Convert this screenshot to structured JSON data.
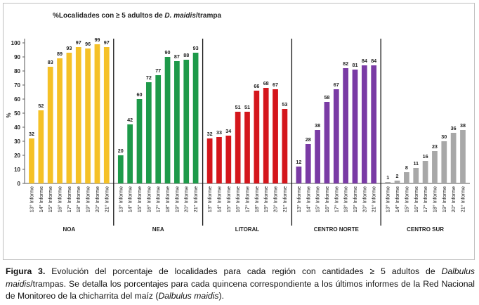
{
  "chart_data": {
    "type": "bar",
    "title_prefix": "%Localidades con ≥ 5 adultos de ",
    "title_species": "D. maidis",
    "title_suffix": "/trampa",
    "ylabel": "%",
    "ylim": [
      0,
      100
    ],
    "yticks": [
      0,
      10,
      20,
      30,
      40,
      50,
      60,
      70,
      80,
      90,
      100
    ],
    "categories": [
      "13° Informe",
      "14° Informe",
      "15° Informe",
      "16° Informe",
      "17° Informe",
      "18° Informe",
      "19° Informe",
      "20° Informe",
      "21° Informe"
    ],
    "series": [
      {
        "name": "NOA",
        "color": "#f5c127",
        "values": [
          32,
          52,
          83,
          89,
          93,
          97,
          96,
          99,
          97
        ]
      },
      {
        "name": "NEA",
        "color": "#1e9a4a",
        "values": [
          20,
          42,
          60,
          72,
          77,
          90,
          87,
          88,
          93
        ]
      },
      {
        "name": "LITORAL",
        "color": "#d4161c",
        "values": [
          32,
          33,
          34,
          51,
          51,
          66,
          68,
          67,
          53
        ]
      },
      {
        "name": "CENTRO NORTE",
        "color": "#7a3ba5",
        "values": [
          12,
          28,
          38,
          58,
          67,
          82,
          81,
          84,
          84
        ]
      },
      {
        "name": "CENTRO SUR",
        "color": "#a8a8a8",
        "values": [
          1,
          2,
          8,
          11,
          16,
          23,
          30,
          36,
          38
        ]
      }
    ]
  },
  "caption": {
    "label": "Figura 3.",
    "part1": " Evolución del porcentaje de localidades para cada región con cantidades ≥ 5 adultos de ",
    "genus1": "Dalbulus maidis",
    "part2": "/trampas. Se detalla los porcentajes para cada quincena correspondiente a los últimos informes de la Red Nacional de Monitoreo de la chicharrita del maíz (",
    "genus2": "Dalbulus maidis",
    "part3": ")."
  }
}
